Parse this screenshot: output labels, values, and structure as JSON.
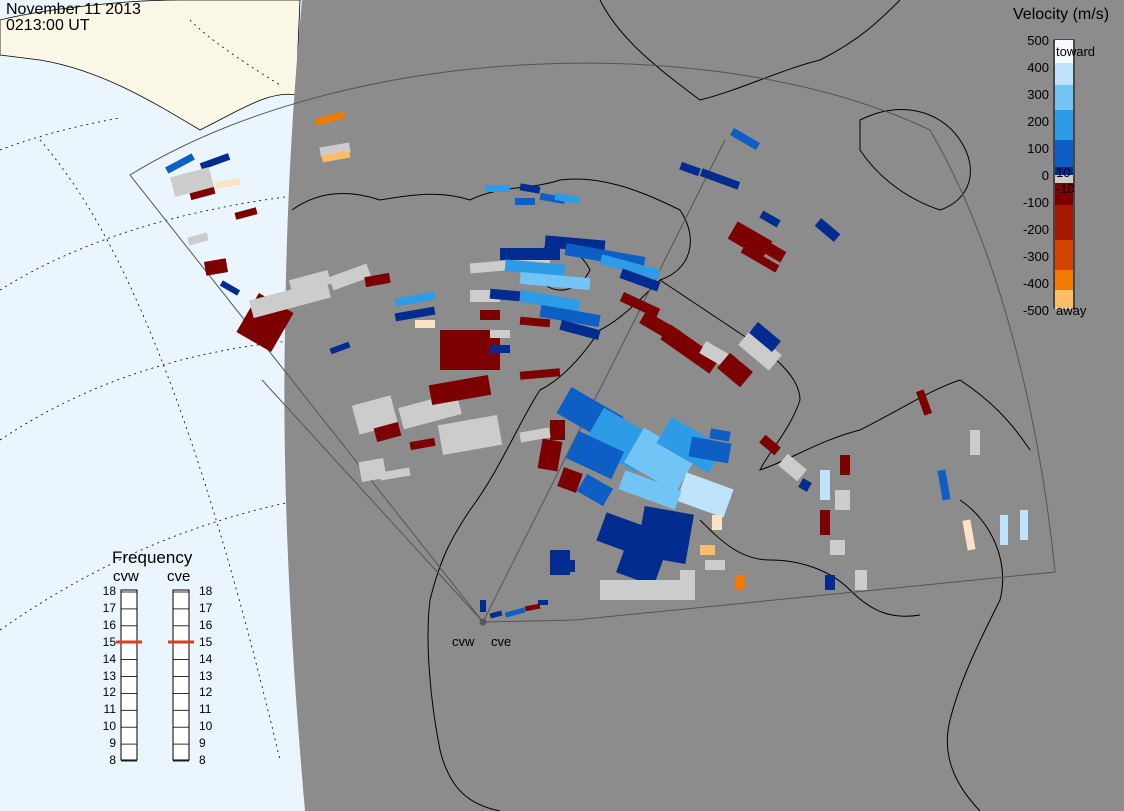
{
  "header": {
    "date": "November 11 2013",
    "time": "0213:00 UT"
  },
  "velocity_scale": {
    "title": "Velocity (m/s)",
    "ticks": [
      "500",
      "400",
      "300",
      "200",
      "100",
      "0",
      "-100",
      "-200",
      "-300",
      "-400",
      "-500"
    ],
    "inner_ticks": [
      "10",
      "-10"
    ],
    "toward_label": "toward",
    "away_label": "away",
    "colors": [
      "#f7fbff",
      "#bfe3fb",
      "#72c4f5",
      "#2e9be6",
      "#0d5ec5",
      "#002c8f",
      "#cccccc",
      "#7d0000",
      "#a61900",
      "#d24400",
      "#f17a00",
      "#fbbe68",
      "#fde3c6"
    ]
  },
  "frequency_panel": {
    "title": "Frequency",
    "radars": [
      {
        "name": "cvw",
        "frequency": 15
      },
      {
        "name": "cve",
        "frequency": 15
      }
    ],
    "scale": [
      "18",
      "17",
      "16",
      "15",
      "14",
      "13",
      "12",
      "11",
      "10",
      "9",
      "8"
    ]
  },
  "sites": [
    {
      "name": "cvw"
    },
    {
      "name": "cve"
    }
  ],
  "map_colors": {
    "night": "#8c8c8c",
    "ocean_day": "#eaf5fd",
    "land_day": "#fbf7e6",
    "ground_scatter": "#cccccc"
  }
}
